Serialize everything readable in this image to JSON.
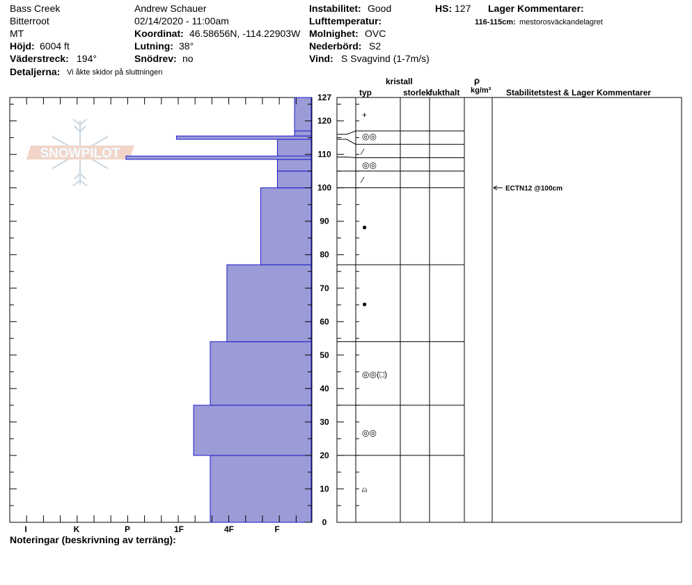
{
  "header": {
    "location": "Bass Creek",
    "range": "Bitterroot",
    "state": "MT",
    "elevation_label": "Höjd:",
    "elevation_value": "6004 ft",
    "aspect_label": "Väderstreck:",
    "aspect_value": "194°",
    "details_label": "Detaljerna:",
    "details_value": "Vi åkte skidor på sluttningen",
    "observer": "Andrew Schauer",
    "datetime": "02/14/2020 - 11:00am",
    "coord_label": "Koordinat:",
    "coord_value": "46.58656N, -114.22903W",
    "slope_label": "Lutning:",
    "slope_value": "38°",
    "drift_label": "Snödrev:",
    "drift_value": "no",
    "stability_label": "Instabilitet:",
    "stability_value": "Good",
    "airtemp_label": "Lufttemperatur:",
    "airtemp_value": "",
    "sky_label": "Molnighet:",
    "sky_value": "OVC",
    "precip_label": "Nederbörd:",
    "precip_value": "S2",
    "wind_label": "Vind:",
    "wind_value": "S Svagvind (1-7m/s)",
    "hs_label": "HS:",
    "hs_value": "127",
    "layer_comments_label": "Lager Kommentarer:",
    "layer_comment_range": "116-115cm:",
    "layer_comment_text": "mestorosväckandelagret"
  },
  "columns": {
    "crystal": "kristall",
    "type": "typ",
    "size": "storlek",
    "moisture": "fukthalt",
    "rho": "ρ",
    "density_unit": "kg/m³",
    "stability": "Stabilitetstest & Lager Kommentarer"
  },
  "notes_label": "Noteringar (beskrivning av terräng):",
  "logo_text": "SNOWPILOT",
  "colors": {
    "bar_fill": "#9b9bd8",
    "bar_stroke": "#1a1acc"
  },
  "chart_data": {
    "type": "bar",
    "orientation": "horizontal",
    "y_axis": {
      "range": [
        0,
        127
      ],
      "ticks": [
        0,
        10,
        20,
        30,
        40,
        50,
        60,
        70,
        80,
        90,
        100,
        110,
        120,
        127
      ],
      "unit": "cm"
    },
    "x_axis": {
      "categories": [
        "I",
        "K",
        "P",
        "1F",
        "4F",
        "F"
      ]
    },
    "hardness_layers": [
      {
        "bottom": 0,
        "top": 20,
        "hardness": 2.0
      },
      {
        "bottom": 20,
        "top": 35,
        "hardness": 2.33
      },
      {
        "bottom": 35,
        "top": 54,
        "hardness": 2.0
      },
      {
        "bottom": 54,
        "top": 77,
        "hardness": 1.67
      },
      {
        "bottom": 77,
        "top": 100,
        "hardness": 1.0
      },
      {
        "bottom": 100,
        "top": 105,
        "hardness": 0.67
      },
      {
        "bottom": 105,
        "top": 108.5,
        "hardness": 0.67
      },
      {
        "bottom": 108.5,
        "top": 109.5,
        "hardness": 3.67
      },
      {
        "bottom": 109.5,
        "top": 114.5,
        "hardness": 0.67
      },
      {
        "bottom": 114.5,
        "top": 115.5,
        "hardness": 2.67
      },
      {
        "bottom": 115.5,
        "top": 117,
        "hardness": 0.33
      },
      {
        "bottom": 117,
        "top": 127,
        "hardness": 0.33
      }
    ],
    "layer_boundaries": [
      0,
      20,
      35,
      54,
      77,
      100,
      105,
      109,
      113,
      117,
      127
    ],
    "grain_types": [
      {
        "depth": 10,
        "symbol": "⍝"
      },
      {
        "depth": 27,
        "symbol": "◎◎"
      },
      {
        "depth": 44.5,
        "symbol": "◎◎(□)"
      },
      {
        "depth": 65.5,
        "symbol": "●"
      },
      {
        "depth": 88.5,
        "symbol": "●"
      },
      {
        "depth": 102.5,
        "symbol": "⁄"
      },
      {
        "depth": 107,
        "symbol": "◎◎"
      },
      {
        "depth": 111,
        "symbol": "⁄"
      },
      {
        "depth": 115.5,
        "symbol": "◎◎"
      },
      {
        "depth": 122,
        "symbol": "+"
      }
    ],
    "stability_tests": [
      {
        "depth": 100,
        "label": "ECTN12 @100cm"
      }
    ]
  }
}
